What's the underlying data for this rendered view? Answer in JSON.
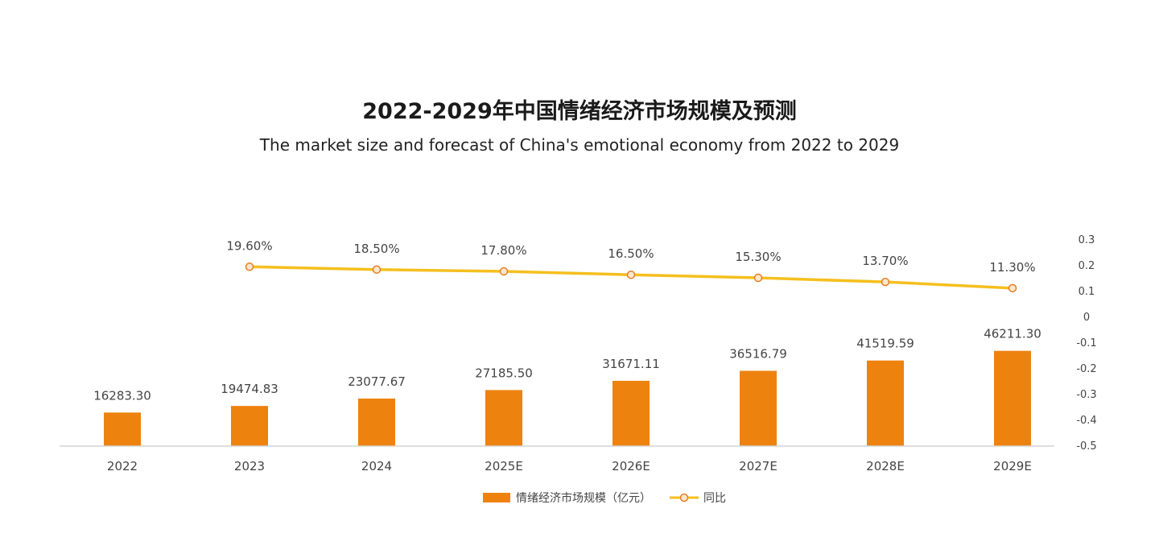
{
  "chart_data": {
    "type": "bar+line",
    "title": "2022-2029年中国情绪经济市场规模及预测",
    "subtitle": "The market size and forecast of China's emotional economy from 2022 to 2029",
    "categories": [
      "2022",
      "2023",
      "2024",
      "2025E",
      "2026E",
      "2027E",
      "2028E",
      "2029E"
    ],
    "series": [
      {
        "name": "情绪经济市场规模（亿元）",
        "type": "bar",
        "color": "#EE820F",
        "values": [
          16283.3,
          19474.83,
          23077.67,
          27185.5,
          31671.11,
          36516.79,
          41519.59,
          46211.3
        ],
        "labels": [
          "16283.30",
          "19474.83",
          "23077.67",
          "27185.50",
          "31671.11",
          "36516.79",
          "41519.59",
          "46211.30"
        ]
      },
      {
        "name": "同比",
        "type": "line",
        "axis": "right",
        "color": "#F5BF1E",
        "values": [
          null,
          0.196,
          0.185,
          0.178,
          0.165,
          0.153,
          0.137,
          0.113
        ],
        "labels": [
          "",
          "19.60%",
          "18.50%",
          "17.80%",
          "16.50%",
          "15.30%",
          "13.70%",
          "11.30%"
        ]
      }
    ],
    "y_right": {
      "ylim": [
        -0.5,
        0.3
      ],
      "ticks": [
        0.3,
        0.2,
        0.1,
        0,
        -0.1,
        -0.2,
        -0.3,
        -0.4,
        -0.5
      ],
      "tick_labels": [
        "0.3",
        "0.2",
        "0.1",
        "0",
        "-0.1",
        "-0.2",
        "-0.3",
        "-0.4",
        "-0.5"
      ]
    },
    "y_left": {
      "ylim": [
        0,
        100000
      ],
      "visible": false
    },
    "legend": "bottom-center",
    "grid": false
  }
}
